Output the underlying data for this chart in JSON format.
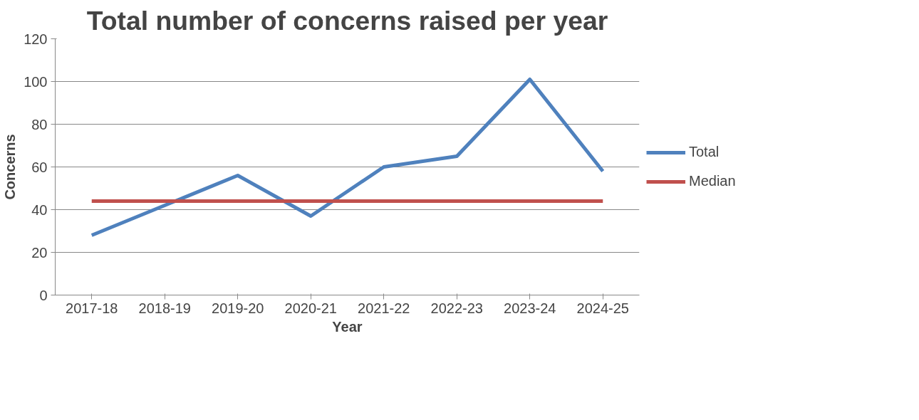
{
  "chart_data": {
    "type": "line",
    "title": "Total number of concerns raised per year",
    "xlabel": "Year",
    "ylabel": "Concerns",
    "categories": [
      "2017-18",
      "2018-19",
      "2019-20",
      "2020-21",
      "2021-22",
      "2022-23",
      "2023-24",
      "2024-25"
    ],
    "series": [
      {
        "name": "Total",
        "color": "#4f81bd",
        "values": [
          28,
          42,
          56,
          37,
          60,
          65,
          101,
          58
        ]
      },
      {
        "name": "Median",
        "color": "#c0504d",
        "values": [
          44,
          44,
          44,
          44,
          44,
          44,
          44,
          44
        ]
      }
    ],
    "ylim": [
      0,
      120
    ],
    "yticks": [
      0,
      20,
      40,
      60,
      80,
      100,
      120
    ],
    "grid": "y",
    "legend": "right",
    "marker": "none",
    "line_style": "solid"
  }
}
